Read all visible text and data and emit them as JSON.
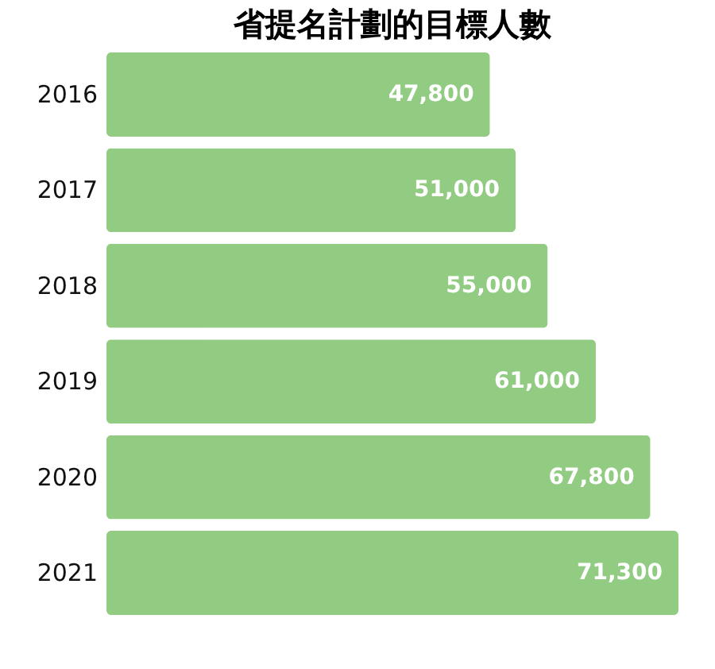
{
  "chart_data": {
    "type": "bar",
    "orientation": "horizontal",
    "title": "省提名計劃的目標人數",
    "categories": [
      "2016",
      "2017",
      "2018",
      "2019",
      "2020",
      "2021"
    ],
    "values": [
      47800,
      51000,
      55000,
      61000,
      67800,
      71300
    ],
    "value_labels": [
      "47,800",
      "51,000",
      "55,000",
      "61,000",
      "67,800",
      "71,300"
    ],
    "color": "#92cc83",
    "grid": false
  }
}
